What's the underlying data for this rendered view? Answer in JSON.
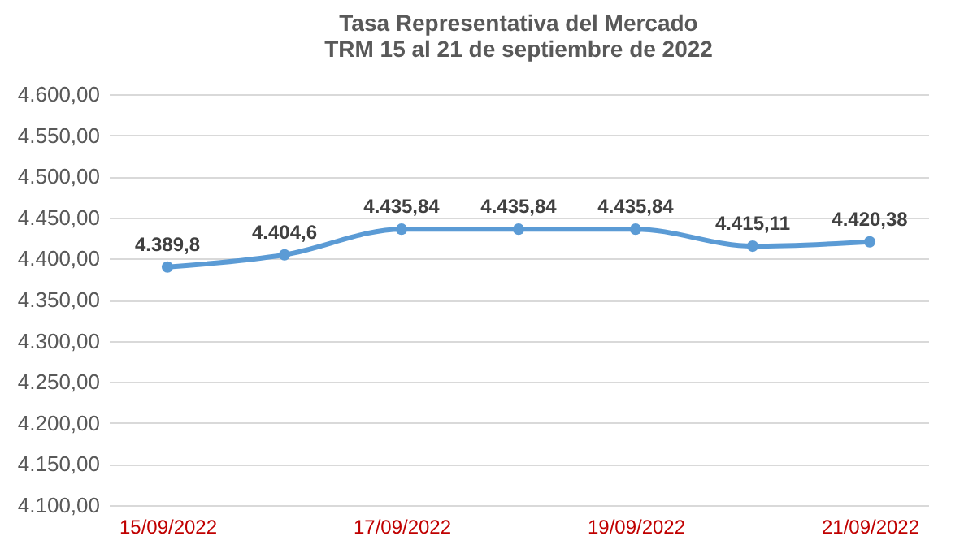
{
  "chart_data": {
    "type": "line",
    "title": "Tasa Representativa del Mercado\nTRM 15 al 21 de septiembre de 2022",
    "categories": [
      "15/09/2022",
      null,
      "17/09/2022",
      null,
      "19/09/2022",
      null,
      "21/09/2022"
    ],
    "series": [
      {
        "color": "#5b9bd5",
        "values": [
          4389.8,
          4404.6,
          4435.84,
          4435.84,
          4435.84,
          4415.11,
          4420.38
        ],
        "value_labels": [
          "4.389,8",
          "4.404,6",
          "4.435,84",
          "4.435,84",
          "4.435,84",
          "4.415,11",
          "4.420,38"
        ]
      }
    ],
    "ylim": [
      4100,
      4600
    ],
    "yticks": [
      {
        "value": 4100,
        "label": "4.100,00"
      },
      {
        "value": 4150,
        "label": "4.150,00"
      },
      {
        "value": 4200,
        "label": "4.200,00"
      },
      {
        "value": 4250,
        "label": "4.250,00"
      },
      {
        "value": 4300,
        "label": "4.300,00"
      },
      {
        "value": 4350,
        "label": "4.350,00"
      },
      {
        "value": 4400,
        "label": "4.400,00"
      },
      {
        "value": 4450,
        "label": "4.450,00"
      },
      {
        "value": 4500,
        "label": "4.500,00"
      },
      {
        "value": 4550,
        "label": "4.550,00"
      },
      {
        "value": 4600,
        "label": "4.600,00"
      }
    ],
    "grid": "y",
    "marker": "circle",
    "line_style": "solid",
    "legend": false
  }
}
